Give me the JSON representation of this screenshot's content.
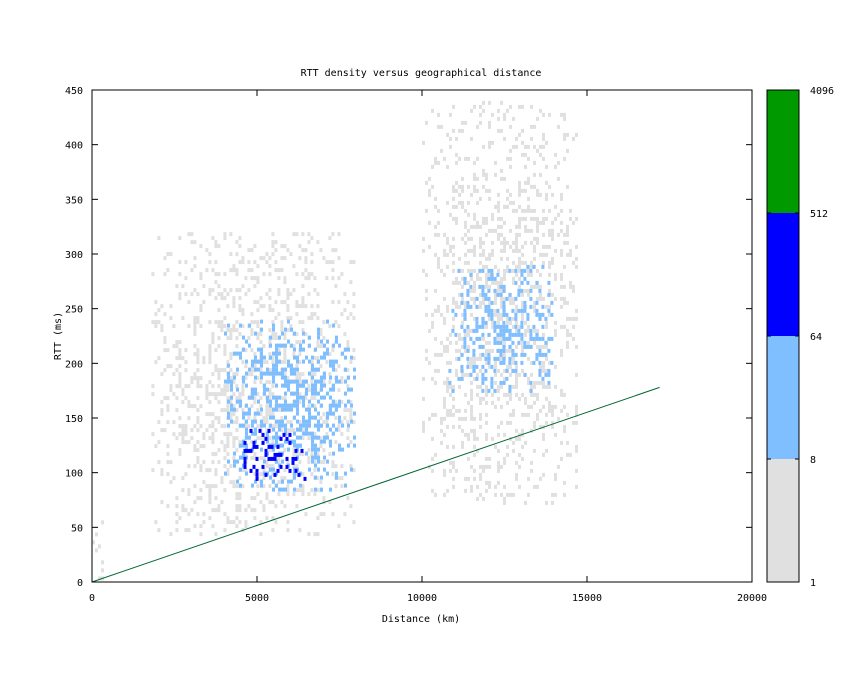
{
  "chart_data": {
    "type": "heatmap",
    "title": "RTT density versus geographical distance",
    "xlabel": "Distance (km)",
    "ylabel": "RTT (ms)",
    "xlim": [
      0,
      20000
    ],
    "ylim": [
      0,
      450
    ],
    "x_ticks": [
      "0",
      "5000",
      "10000",
      "15000",
      "20000"
    ],
    "y_ticks": [
      "0",
      "50",
      "100",
      "150",
      "200",
      "250",
      "300",
      "350",
      "400",
      "450"
    ],
    "colorbar": {
      "scale": "log",
      "range": [
        1,
        4096
      ],
      "tick_labels": [
        "1",
        "8",
        "64",
        "512",
        "4096"
      ],
      "bands": [
        {
          "from": 1,
          "to": 8,
          "color": "#e0e0e0"
        },
        {
          "from": 8,
          "to": 64,
          "color": "#80bfff"
        },
        {
          "from": 64,
          "to": 512,
          "color": "#0000ff"
        },
        {
          "from": 512,
          "to": 4096,
          "color": "#009900"
        }
      ]
    },
    "clusters": [
      {
        "x_range": [
          0,
          400
        ],
        "y_range": [
          0,
          60
        ],
        "level": 1
      },
      {
        "x_range": [
          1800,
          8000
        ],
        "y_range": [
          40,
          320
        ],
        "level": 1
      },
      {
        "x_range": [
          4000,
          8000
        ],
        "y_range": [
          80,
          240
        ],
        "level": 2
      },
      {
        "x_range": [
          4500,
          6500
        ],
        "y_range": [
          90,
          140
        ],
        "level": 3
      },
      {
        "x_range": [
          10000,
          14800
        ],
        "y_range": [
          70,
          440
        ],
        "level": 1
      },
      {
        "x_range": [
          10800,
          14000
        ],
        "y_range": [
          170,
          290
        ],
        "level": 2
      }
    ],
    "reference_line": {
      "color": "#006633",
      "points": [
        [
          0,
          0
        ],
        [
          17200,
          178
        ]
      ]
    }
  }
}
